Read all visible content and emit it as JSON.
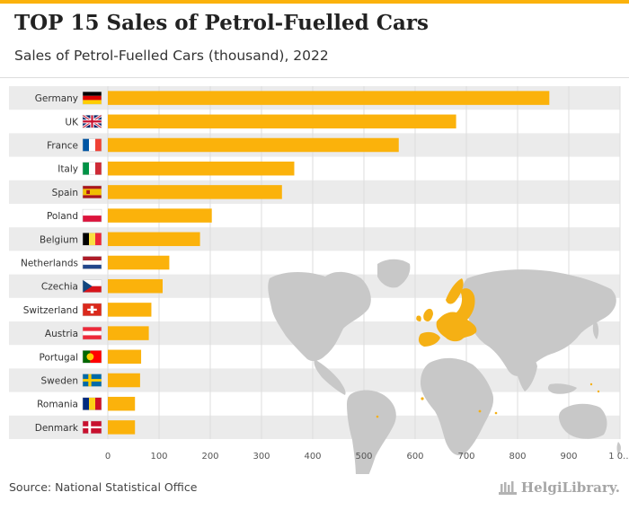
{
  "header": {
    "title": "TOP 15 Sales of Petrol-Fuelled Cars",
    "subtitle": "Sales of Petrol-Fuelled Cars (thousand), 2022"
  },
  "footer": {
    "source": "Source: National Statistical Office",
    "logo_text": "HelgiLibrary."
  },
  "colors": {
    "accent": "#fbb20b",
    "row_band": "#ebebeb",
    "map_land": "#c8c8c8",
    "map_highlight": "#f5b014",
    "grid": "#dcdcdc"
  },
  "chart_data": {
    "type": "bar",
    "orientation": "horizontal",
    "title": "TOP 15 Sales of Petrol-Fuelled Cars",
    "subtitle": "Sales of Petrol-Fuelled Cars (thousand), 2022",
    "xlabel": "",
    "ylabel": "",
    "xlim": [
      0,
      1000
    ],
    "x_ticks": [
      "0",
      "100",
      "200",
      "300",
      "400",
      "500",
      "600",
      "700",
      "800",
      "900",
      "1 0..."
    ],
    "grid": true,
    "legend": "none",
    "categories": [
      "Germany",
      "UK",
      "France",
      "Italy",
      "Spain",
      "Poland",
      "Belgium",
      "Netherlands",
      "Czechia",
      "Switzerland",
      "Austria",
      "Portugal",
      "Sweden",
      "Romania",
      "Denmark"
    ],
    "flags": [
      "de",
      "gb",
      "fr",
      "it",
      "es",
      "pl",
      "be",
      "nl",
      "cz",
      "ch",
      "at",
      "pt",
      "se",
      "ro",
      "dk"
    ],
    "values": [
      862,
      680,
      568,
      364,
      340,
      203,
      180,
      120,
      107,
      85,
      80,
      65,
      63,
      53,
      53
    ]
  }
}
